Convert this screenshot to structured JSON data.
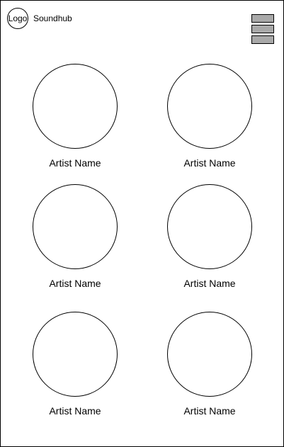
{
  "header": {
    "logo_text": "Logo",
    "brand": "Soundhub",
    "menu_icon": "hamburger-menu-icon"
  },
  "artists": [
    {
      "name": "Artist Name"
    },
    {
      "name": "Artist Name"
    },
    {
      "name": "Artist Name"
    },
    {
      "name": "Artist Name"
    },
    {
      "name": "Artist Name"
    },
    {
      "name": "Artist Name"
    }
  ],
  "colors": {
    "background": "#ffffff",
    "border": "#000000",
    "menu_bar": "#a9a9a9"
  }
}
